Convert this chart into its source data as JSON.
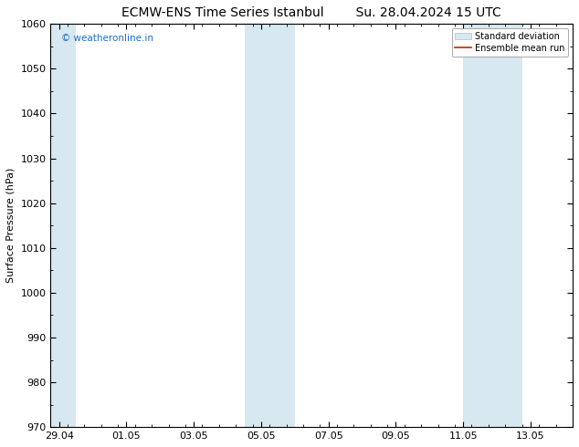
{
  "title_left": "ECMW-ENS Time Series Istanbul",
  "title_right": "Su. 28.04.2024 15 UTC",
  "ylabel": "Surface Pressure (hPa)",
  "ylim": [
    970,
    1060
  ],
  "yticks": [
    970,
    980,
    990,
    1000,
    1010,
    1020,
    1030,
    1040,
    1050,
    1060
  ],
  "xtick_labels": [
    "29.04",
    "01.05",
    "03.05",
    "05.05",
    "07.05",
    "09.05",
    "11.05",
    "13.05"
  ],
  "xtick_positions": [
    0,
    2,
    4,
    6,
    8,
    10,
    12,
    14
  ],
  "xlim": [
    -0.25,
    15.0
  ],
  "watermark_text": "© weatheronline.in",
  "watermark_color": "#1a6ecc",
  "background_color": "#ffffff",
  "plot_bg_color": "#ffffff",
  "shaded_regions": [
    {
      "x_start": -0.25,
      "x_end": 0.5
    },
    {
      "x_start": 5.5,
      "x_end": 6.5
    },
    {
      "x_start": 6.5,
      "x_end": 7.0
    },
    {
      "x_start": 12.0,
      "x_end": 13.0
    },
    {
      "x_start": 13.0,
      "x_end": 13.75
    }
  ],
  "shaded_color": "#d8e8f0",
  "legend_std_color": "#d8e8f0",
  "legend_std_edge": "#aabbcc",
  "legend_mean_color": "#cc2200",
  "title_fontsize": 10,
  "ylabel_fontsize": 8,
  "tick_fontsize": 8,
  "legend_fontsize": 7
}
